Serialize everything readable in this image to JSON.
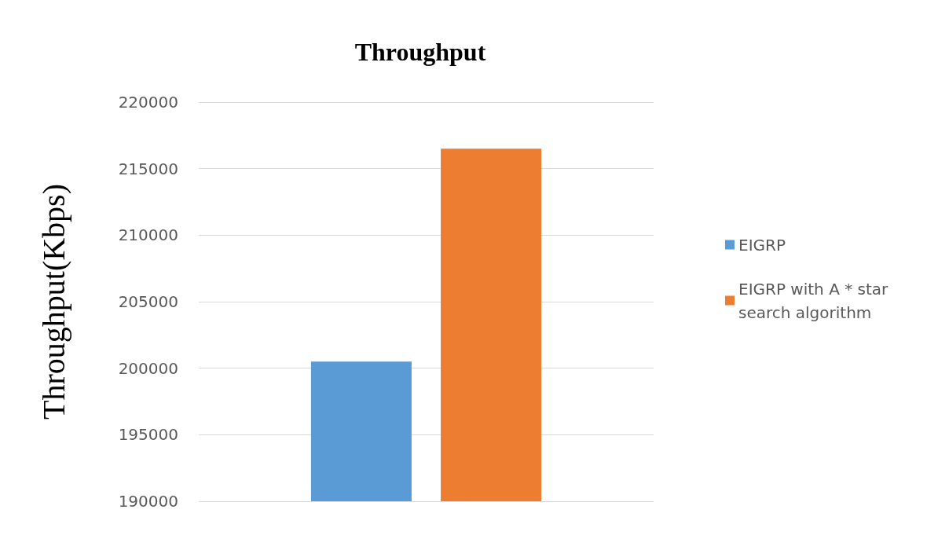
{
  "chart_data": {
    "type": "bar",
    "title": "Throughput",
    "ylabel": "Throughput(Kbps)",
    "categories": [
      null
    ],
    "series": [
      {
        "name": "EIGRP",
        "color": "#5b9bd5",
        "values": [
          200500
        ]
      },
      {
        "name": "EIGRP with A * star search algorithm",
        "color": "#ed7d31",
        "values": [
          216500
        ]
      }
    ],
    "ylim": [
      190000,
      220000
    ],
    "yticks": [
      190000,
      195000,
      200000,
      205000,
      210000,
      215000,
      220000
    ],
    "grid": "y",
    "legend": "right"
  }
}
